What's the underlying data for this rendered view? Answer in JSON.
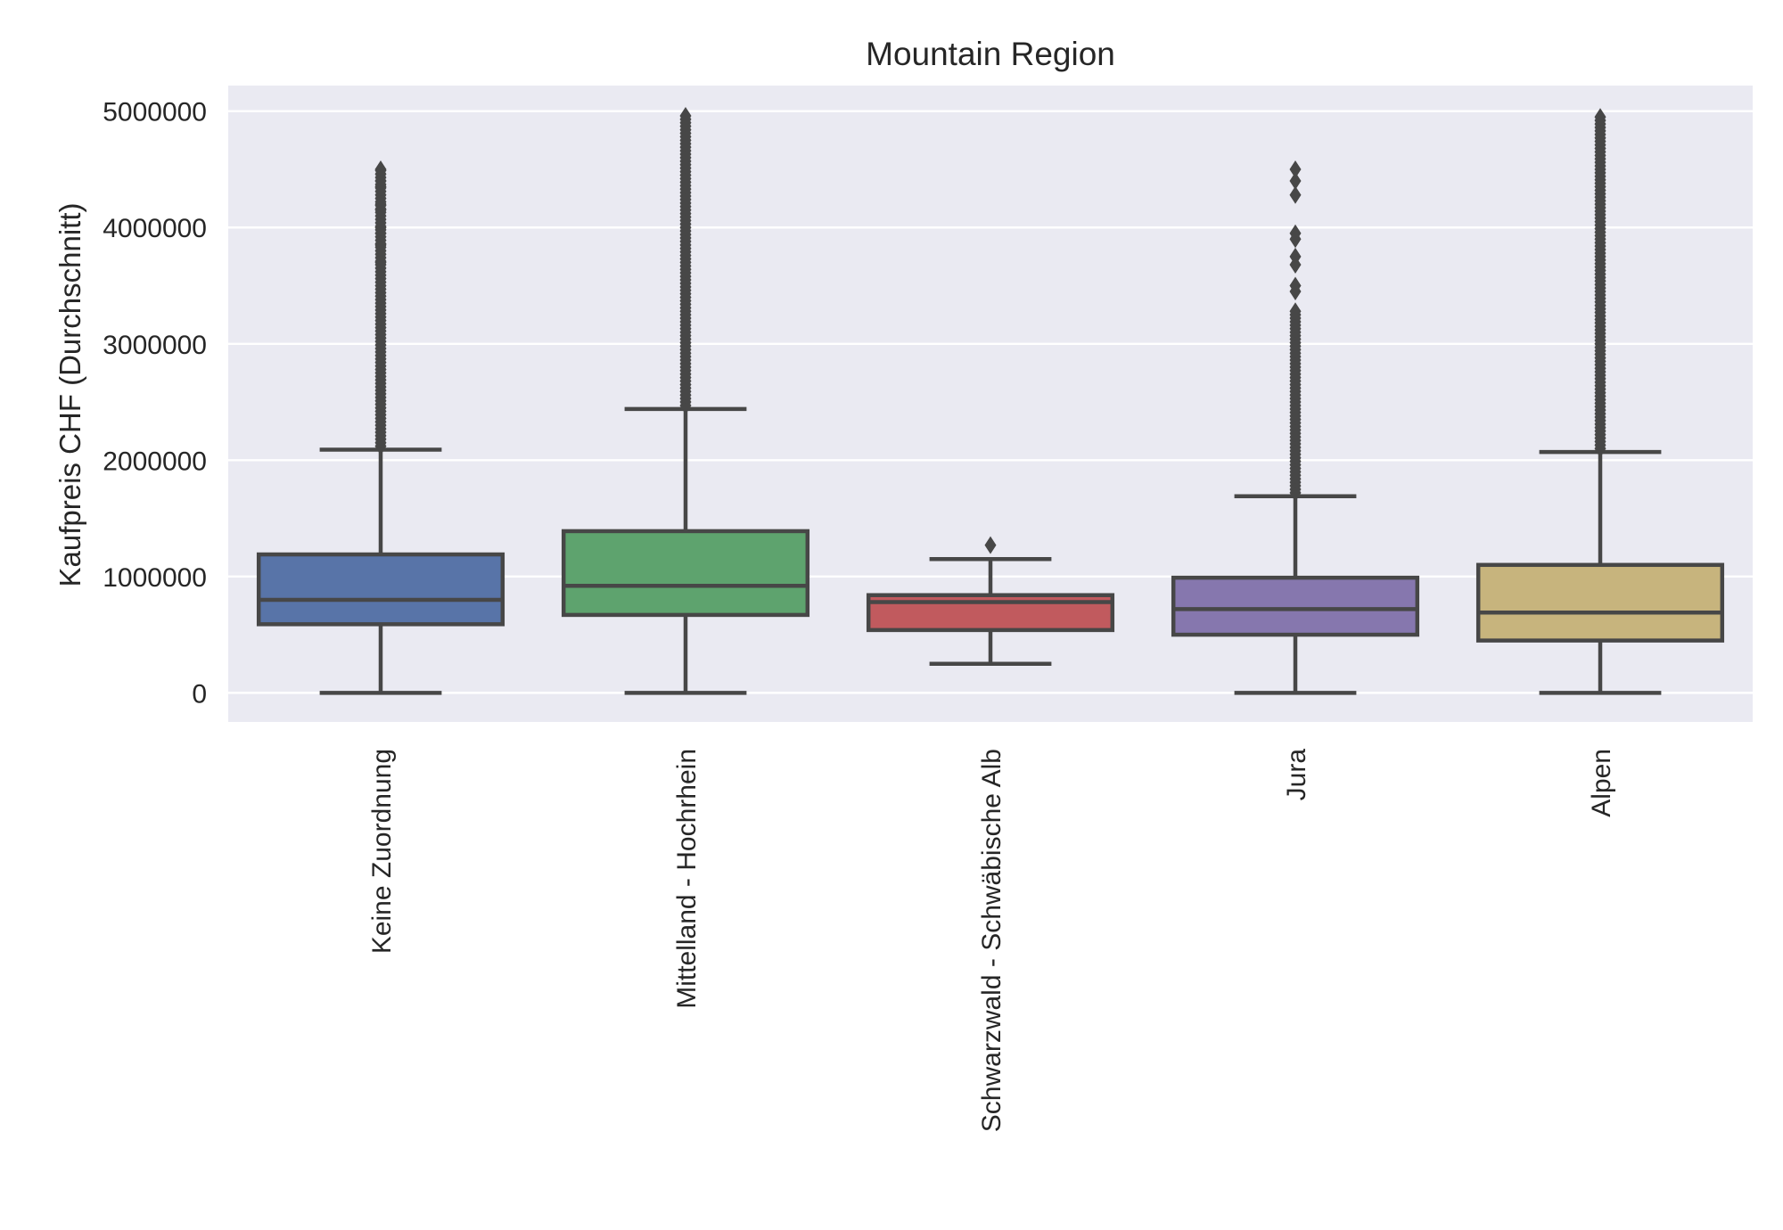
{
  "chart_data": {
    "type": "box",
    "title": "Mountain Region",
    "xlabel": "",
    "ylabel": "Kaufpreis CHF (Durchschnitt)",
    "ylim": [
      -250000,
      5220000
    ],
    "yticks": [
      0,
      1000000,
      2000000,
      3000000,
      4000000,
      5000000
    ],
    "ytick_labels": [
      "0",
      "1000000",
      "2000000",
      "3000000",
      "4000000",
      "5000000"
    ],
    "grid": true,
    "categories": [
      "Keine Zuordnung",
      "Mittelland - Hochrhein",
      "Schwarzwald - Schwäbische Alb",
      "Jura",
      "Alpen"
    ],
    "colors": [
      "#5874a8",
      "#5ea36e",
      "#c15a5e",
      "#8677ae",
      "#c7b47d"
    ],
    "plot_background": "#eaeaf2",
    "line_color": "#474747",
    "boxes": [
      {
        "whislo": 0,
        "q1": 590000,
        "median": 800000,
        "q3": 1190000,
        "whishi": 2090000,
        "outlier_range": [
          2090000,
          4500000
        ],
        "outliers_sparse": [
          3700000,
          3850000,
          3950000,
          4000000,
          4150000,
          4200000,
          4350000,
          4400000,
          4500000
        ]
      },
      {
        "whislo": 0,
        "q1": 670000,
        "median": 920000,
        "q3": 1390000,
        "whishi": 2440000,
        "outlier_range": [
          2440000,
          4970000
        ],
        "outliers_sparse": []
      },
      {
        "whislo": 250000,
        "q1": 540000,
        "median": 780000,
        "q3": 840000,
        "whishi": 1150000,
        "outlier_range": null,
        "outliers_sparse": [
          1270000
        ]
      },
      {
        "whislo": 0,
        "q1": 500000,
        "median": 720000,
        "q3": 990000,
        "whishi": 1690000,
        "outlier_range": [
          1690000,
          3300000
        ],
        "outliers_sparse": [
          3450000,
          3500000,
          3680000,
          3750000,
          3900000,
          3950000,
          4280000,
          4400000,
          4500000
        ]
      },
      {
        "whislo": 0,
        "q1": 450000,
        "median": 690000,
        "q3": 1100000,
        "whishi": 2070000,
        "outlier_range": [
          2070000,
          4950000
        ],
        "outliers_sparse": []
      }
    ]
  }
}
